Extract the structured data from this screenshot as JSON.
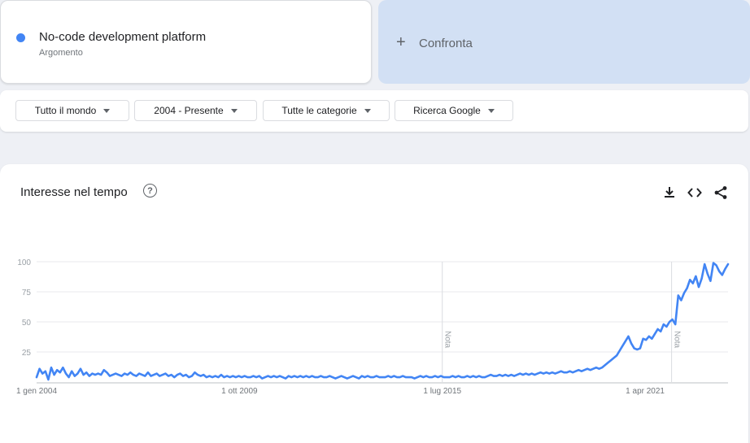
{
  "term": {
    "title": "No-code development platform",
    "subtitle": "Argomento",
    "color": "#4285f4"
  },
  "compare": {
    "label": "Confronta",
    "icon": "plus-icon"
  },
  "filters": [
    {
      "label": "Tutto il mondo"
    },
    {
      "label": "2004 - Presente"
    },
    {
      "label": "Tutte le categorie"
    },
    {
      "label": "Ricerca Google"
    }
  ],
  "chart_card": {
    "title": "Interesse nel tempo",
    "help_icon": "question-mark-icon",
    "actions": [
      "download-icon",
      "embed-code-icon",
      "share-icon"
    ]
  },
  "chart_data": {
    "type": "line",
    "title": "Interesse nel tempo",
    "xlabel": "",
    "ylabel": "",
    "ylim": [
      0,
      100
    ],
    "yticks": [
      25,
      50,
      75,
      100
    ],
    "xticks": [
      {
        "label": "1 gen 2004",
        "t": 2004.0
      },
      {
        "label": "1 ott 2009",
        "t": 2009.75
      },
      {
        "label": "1 lug 2015",
        "t": 2015.5
      },
      {
        "label": "1 apr 2021",
        "t": 2021.25
      }
    ],
    "annotations": [
      {
        "label": "Nota",
        "t": 2015.5
      },
      {
        "label": "Nota",
        "t": 2022.0
      }
    ],
    "line_color": "#4285f4",
    "grid": true,
    "series": [
      {
        "name": "No-code development platform",
        "start": 2004.0,
        "end": 2023.6,
        "values": [
          4,
          11,
          7,
          9,
          2,
          12,
          6,
          10,
          8,
          12,
          7,
          4,
          9,
          5,
          7,
          11,
          6,
          8,
          5,
          7,
          6,
          7,
          6,
          10,
          8,
          5,
          6,
          7,
          6,
          5,
          7,
          6,
          8,
          6,
          5,
          7,
          6,
          5,
          8,
          5,
          6,
          7,
          5,
          6,
          7,
          5,
          6,
          4,
          6,
          7,
          5,
          6,
          4,
          5,
          8,
          6,
          5,
          6,
          4,
          5,
          4,
          5,
          4,
          6,
          4,
          5,
          4,
          5,
          4,
          5,
          4,
          5,
          4,
          4,
          5,
          4,
          5,
          3,
          4,
          5,
          4,
          5,
          4,
          5,
          4,
          3,
          5,
          4,
          5,
          4,
          5,
          4,
          5,
          4,
          5,
          4,
          4,
          5,
          4,
          4,
          5,
          4,
          3,
          4,
          5,
          4,
          3,
          4,
          5,
          4,
          3,
          5,
          4,
          5,
          4,
          4,
          5,
          4,
          4,
          4,
          5,
          4,
          5,
          4,
          4,
          5,
          4,
          4,
          4,
          3,
          4,
          5,
          4,
          5,
          4,
          4,
          5,
          4,
          5,
          4,
          4,
          4,
          5,
          4,
          5,
          4,
          4,
          5,
          4,
          5,
          4,
          5,
          4,
          4,
          5,
          6,
          5,
          5,
          6,
          5,
          6,
          5,
          6,
          5,
          6,
          7,
          6,
          7,
          6,
          7,
          6,
          7,
          8,
          7,
          8,
          7,
          8,
          7,
          8,
          9,
          8,
          8,
          9,
          8,
          9,
          10,
          9,
          10,
          11,
          10,
          11,
          12,
          11,
          12,
          14,
          16,
          18,
          20,
          22,
          26,
          30,
          34,
          38,
          32,
          28,
          27,
          28,
          36,
          35,
          38,
          36,
          40,
          44,
          42,
          48,
          46,
          50,
          52,
          48,
          72,
          68,
          74,
          78,
          85,
          82,
          88,
          79,
          86,
          98,
          90,
          84,
          99,
          97,
          92,
          89,
          94,
          98
        ]
      }
    ]
  }
}
